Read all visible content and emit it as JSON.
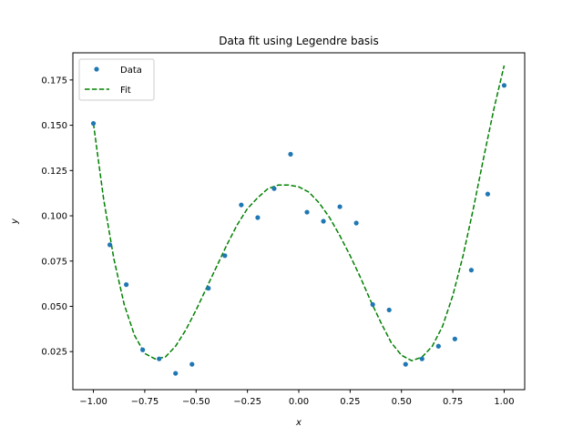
{
  "chart_data": {
    "type": "scatter",
    "title": "Data fit using Legendre basis",
    "xlabel": "x",
    "ylabel": "y",
    "xlim": [
      -1.1,
      1.1
    ],
    "ylim": [
      0.004,
      0.19
    ],
    "xticks": [
      -1.0,
      -0.75,
      -0.5,
      -0.25,
      0.0,
      0.25,
      0.5,
      0.75,
      1.0
    ],
    "xtick_labels": [
      "−1.00",
      "−0.75",
      "−0.50",
      "−0.25",
      "0.00",
      "0.25",
      "0.50",
      "0.75",
      "1.00"
    ],
    "yticks": [
      0.025,
      0.05,
      0.075,
      0.1,
      0.125,
      0.15,
      0.175
    ],
    "ytick_labels": [
      "0.025",
      "0.050",
      "0.075",
      "0.100",
      "0.125",
      "0.150",
      "0.175"
    ],
    "grid": false,
    "legend_position": "top-left",
    "series": [
      {
        "name": "Data",
        "kind": "scatter",
        "color": "#1f77b4",
        "x": [
          -1.0,
          -0.92,
          -0.84,
          -0.76,
          -0.68,
          -0.6,
          -0.52,
          -0.44,
          -0.36,
          -0.28,
          -0.2,
          -0.12,
          -0.04,
          0.04,
          0.12,
          0.2,
          0.28,
          0.36,
          0.44,
          0.52,
          0.6,
          0.68,
          0.76,
          0.84,
          0.92,
          1.0
        ],
        "y": [
          0.151,
          0.084,
          0.062,
          0.026,
          0.021,
          0.013,
          0.018,
          0.06,
          0.078,
          0.106,
          0.099,
          0.115,
          0.134,
          0.102,
          0.097,
          0.105,
          0.096,
          0.051,
          0.048,
          0.018,
          0.021,
          0.028,
          0.032,
          0.07,
          0.112,
          0.172
        ]
      },
      {
        "name": "Fit",
        "kind": "line",
        "style": "dashed",
        "color": "#008000",
        "x": [
          -1.0,
          -0.95,
          -0.9,
          -0.85,
          -0.8,
          -0.75,
          -0.7,
          -0.65,
          -0.6,
          -0.55,
          -0.5,
          -0.45,
          -0.4,
          -0.35,
          -0.3,
          -0.25,
          -0.2,
          -0.15,
          -0.1,
          -0.05,
          0.0,
          0.05,
          0.1,
          0.15,
          0.2,
          0.25,
          0.3,
          0.35,
          0.4,
          0.45,
          0.5,
          0.55,
          0.6,
          0.65,
          0.7,
          0.75,
          0.8,
          0.85,
          0.9,
          0.95,
          1.0
        ],
        "y": [
          0.151,
          0.109,
          0.076,
          0.051,
          0.034,
          0.024,
          0.021,
          0.022,
          0.028,
          0.037,
          0.048,
          0.06,
          0.072,
          0.084,
          0.095,
          0.104,
          0.11,
          0.115,
          0.117,
          0.117,
          0.116,
          0.113,
          0.107,
          0.099,
          0.089,
          0.078,
          0.066,
          0.053,
          0.041,
          0.03,
          0.023,
          0.02,
          0.022,
          0.028,
          0.039,
          0.056,
          0.078,
          0.104,
          0.132,
          0.159,
          0.183
        ]
      }
    ]
  }
}
